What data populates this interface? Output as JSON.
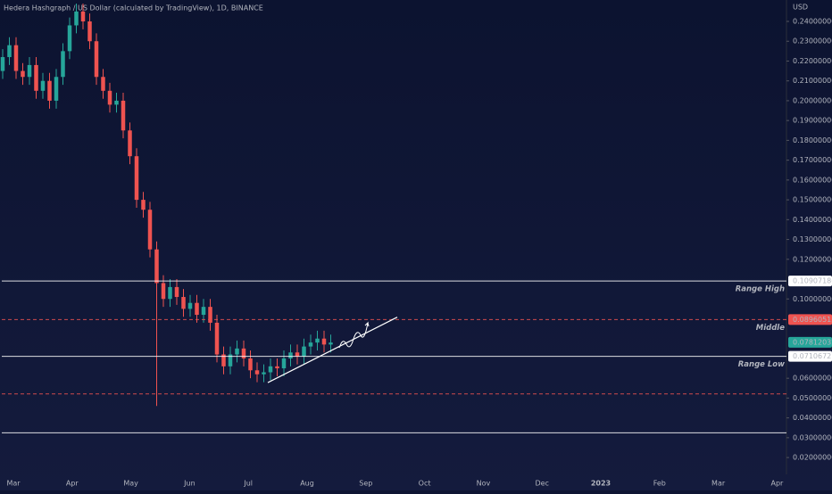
{
  "chart_data": {
    "type": "candlestick",
    "title": "Hedera Hashgraph / US Dollar (calculated by TradingView), 1D, BINANCE",
    "currency": "USD",
    "up_color": "#26a69a",
    "down_color": "#ef5350",
    "open": [
      0.215,
      0.222,
      0.228,
      0.215,
      0.212,
      0.218,
      0.205,
      0.21,
      0.2,
      0.212,
      0.225,
      0.238,
      0.245,
      0.24,
      0.23,
      0.212,
      0.205,
      0.198,
      0.2,
      0.185,
      0.172,
      0.15,
      0.145,
      0.125,
      0.108,
      0.1,
      0.106,
      0.101,
      0.095,
      0.098,
      0.092,
      0.096,
      0.088,
      0.072,
      0.066,
      0.072,
      0.075,
      0.07,
      0.064,
      0.062,
      0.063,
      0.066,
      0.065,
      0.07,
      0.073,
      0.071,
      0.076,
      0.078,
      0.08,
      0.077
    ],
    "high": [
      0.226,
      0.232,
      0.232,
      0.219,
      0.222,
      0.222,
      0.214,
      0.214,
      0.216,
      0.229,
      0.242,
      0.249,
      0.249,
      0.244,
      0.234,
      0.216,
      0.209,
      0.204,
      0.204,
      0.189,
      0.176,
      0.154,
      0.149,
      0.129,
      0.112,
      0.11,
      0.11,
      0.105,
      0.102,
      0.102,
      0.1,
      0.1,
      0.092,
      0.076,
      0.076,
      0.079,
      0.079,
      0.074,
      0.068,
      0.067,
      0.07,
      0.07,
      0.074,
      0.077,
      0.077,
      0.08,
      0.082,
      0.084,
      0.084,
      0.082
    ],
    "low": [
      0.211,
      0.218,
      0.211,
      0.208,
      0.208,
      0.201,
      0.201,
      0.196,
      0.196,
      0.208,
      0.221,
      0.234,
      0.236,
      0.226,
      0.208,
      0.201,
      0.194,
      0.194,
      0.181,
      0.168,
      0.146,
      0.141,
      0.121,
      0.046,
      0.096,
      0.096,
      0.097,
      0.091,
      0.091,
      0.088,
      0.088,
      0.084,
      0.068,
      0.062,
      0.062,
      0.068,
      0.066,
      0.06,
      0.058,
      0.058,
      0.059,
      0.061,
      0.061,
      0.066,
      0.067,
      0.067,
      0.072,
      0.074,
      0.073,
      0.073
    ],
    "close": [
      0.222,
      0.228,
      0.215,
      0.212,
      0.218,
      0.205,
      0.21,
      0.2,
      0.212,
      0.225,
      0.238,
      0.245,
      0.24,
      0.23,
      0.212,
      0.205,
      0.198,
      0.2,
      0.185,
      0.172,
      0.15,
      0.145,
      0.125,
      0.108,
      0.1,
      0.106,
      0.101,
      0.095,
      0.098,
      0.092,
      0.096,
      0.088,
      0.072,
      0.066,
      0.072,
      0.075,
      0.07,
      0.064,
      0.062,
      0.063,
      0.066,
      0.065,
      0.07,
      0.073,
      0.071,
      0.076,
      0.078,
      0.08,
      0.077,
      0.078
    ],
    "ylim": [
      0.0115,
      0.2508
    ],
    "yticks": [
      {
        "value": 0.24,
        "label": "0.24000000"
      },
      {
        "value": 0.23,
        "label": "0.23000000"
      },
      {
        "value": 0.22,
        "label": "0.22000000"
      },
      {
        "value": 0.21,
        "label": "0.21000000"
      },
      {
        "value": 0.2,
        "label": "0.20000000"
      },
      {
        "value": 0.19,
        "label": "0.19000000"
      },
      {
        "value": 0.18,
        "label": "0.18000000"
      },
      {
        "value": 0.17,
        "label": "0.17000000"
      },
      {
        "value": 0.16,
        "label": "0.16000000"
      },
      {
        "value": 0.15,
        "label": "0.15000000"
      },
      {
        "value": 0.14,
        "label": "0.14000000"
      },
      {
        "value": 0.13,
        "label": "0.13000000"
      },
      {
        "value": 0.12,
        "label": "0.12000000"
      },
      {
        "value": 0.1,
        "label": "0.10000000"
      },
      {
        "value": 0.06,
        "label": "0.06000000"
      },
      {
        "value": 0.05,
        "label": "0.05000000"
      },
      {
        "value": 0.04,
        "label": "0.04000000"
      },
      {
        "value": 0.03,
        "label": "0.03000000"
      },
      {
        "value": 0.02,
        "label": "0.02000000"
      }
    ],
    "xticks": [
      "Mar",
      "Apr",
      "May",
      "Jun",
      "Jul",
      "Aug",
      "Sep",
      "Oct",
      "Nov",
      "Dec",
      "2023",
      "Feb",
      "Mar",
      "Apr"
    ],
    "levels": [
      {
        "name": "Range High",
        "value": 0.10907186,
        "color": "#ffffff",
        "style": "solid"
      },
      {
        "name": "Middle",
        "value": 0.08960515,
        "color": "#ef5350",
        "style": "dashed"
      },
      {
        "name": "Range Low",
        "value": 0.07106727,
        "color": "#ffffff",
        "style": "solid"
      },
      {
        "value": 0.0521,
        "color": "#ef5350",
        "style": "dashed"
      },
      {
        "value": 0.0325,
        "color": "#ffffff",
        "style": "solid"
      }
    ],
    "last_price": 0.07812032,
    "trendline": [
      0.0578,
      0.0908
    ]
  }
}
